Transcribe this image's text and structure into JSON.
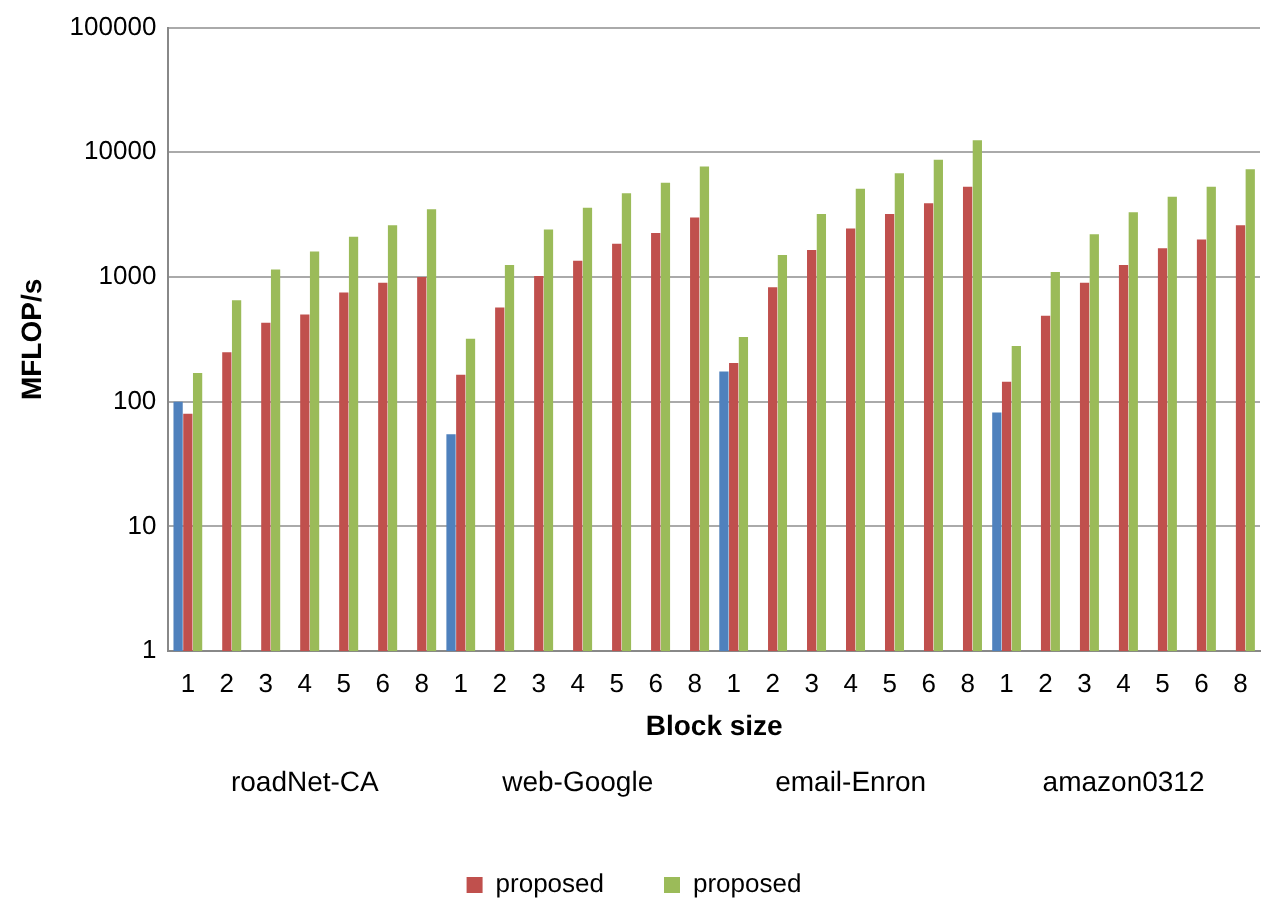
{
  "chart_data": {
    "type": "bar",
    "ylabel": "MFLOP/s",
    "xlabel": "Block size",
    "categories": [
      "1",
      "2",
      "3",
      "4",
      "5",
      "6",
      "8",
      "1",
      "2",
      "3",
      "4",
      "5",
      "6",
      "8",
      "1",
      "2",
      "3",
      "4",
      "5",
      "6",
      "8",
      "1",
      "2",
      "3",
      "4",
      "5",
      "6",
      "8"
    ],
    "annotations": [
      "roadNet-CA",
      "web-Google",
      "email-Enron",
      "amazon0312"
    ],
    "series": [
      {
        "color": "#4f81bd",
        "values": [
          100,
          null,
          null,
          null,
          null,
          null,
          null,
          55,
          null,
          null,
          null,
          null,
          null,
          null,
          175,
          null,
          null,
          null,
          null,
          null,
          null,
          82,
          null,
          null,
          null,
          null,
          null,
          null
        ]
      },
      {
        "name": "proposed",
        "color": "#c0504d",
        "values": [
          80,
          250,
          430,
          500,
          750,
          900,
          1000,
          165,
          570,
          1020,
          1350,
          1850,
          2250,
          3000,
          205,
          830,
          1650,
          2450,
          3200,
          3900,
          5300,
          145,
          490,
          900,
          1250,
          1700,
          2000,
          2600
        ]
      },
      {
        "name": "proposed",
        "color": "#9bbb59",
        "values": [
          170,
          650,
          1150,
          1600,
          2100,
          2600,
          3500,
          320,
          1250,
          2400,
          3600,
          4700,
          5700,
          7700,
          330,
          1500,
          3200,
          5100,
          6800,
          8700,
          12500,
          280,
          1100,
          2200,
          3300,
          4400,
          5300,
          7300
        ]
      }
    ],
    "log": "y",
    "ylim": [
      1,
      100000
    ],
    "yticks": [
      1,
      10,
      100,
      1000,
      10000,
      100000
    ],
    "grid": "y",
    "legend": "bottom"
  }
}
